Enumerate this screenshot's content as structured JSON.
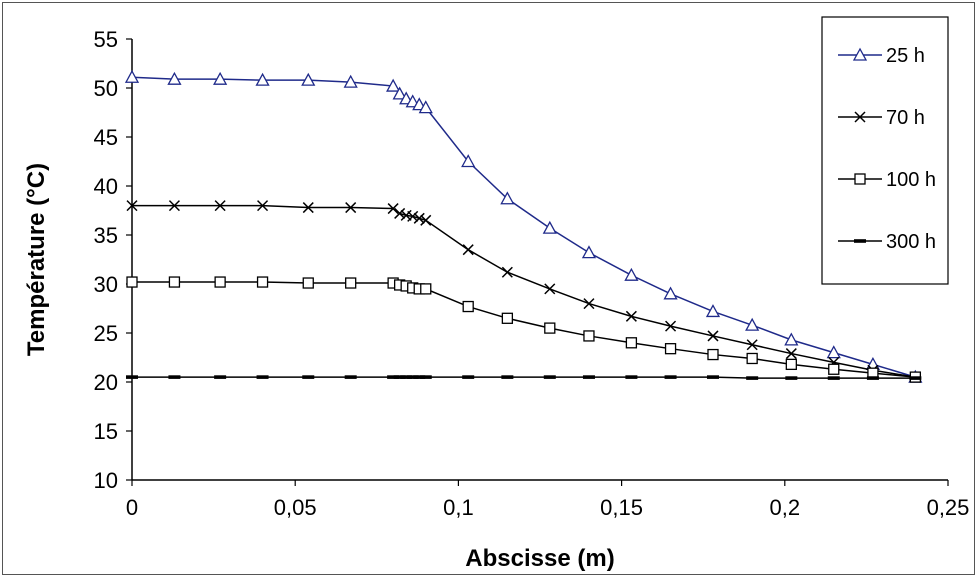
{
  "chart_data": {
    "type": "line",
    "xlabel": "Abscisse (m)",
    "ylabel": "Température (°C)",
    "xlim": [
      0,
      0.25
    ],
    "ylim": [
      10,
      55
    ],
    "grid": false,
    "legend_position": "top-right",
    "x_tick_labels": [
      "0",
      "0,05",
      "0,1",
      "0,15",
      "0,2",
      "0,25"
    ],
    "y_tick_labels": [
      "10",
      "15",
      "20",
      "25",
      "30",
      "35",
      "40",
      "45",
      "50",
      "55"
    ],
    "x": [
      0,
      0.013,
      0.027,
      0.04,
      0.054,
      0.067,
      0.08,
      0.082,
      0.084,
      0.086,
      0.088,
      0.09,
      0.103,
      0.115,
      0.128,
      0.14,
      0.153,
      0.165,
      0.178,
      0.19,
      0.202,
      0.215,
      0.227,
      0.24
    ],
    "series": [
      {
        "name": "25 h",
        "marker": "triangle",
        "color": "#1f2a8a",
        "values": [
          51.1,
          50.9,
          50.9,
          50.8,
          50.8,
          50.6,
          50.2,
          49.4,
          48.9,
          48.6,
          48.3,
          48.0,
          42.5,
          38.7,
          35.7,
          33.2,
          30.9,
          29.0,
          27.2,
          25.8,
          24.3,
          23.0,
          21.8,
          20.5
        ]
      },
      {
        "name": "70 h",
        "marker": "x",
        "color": "#000000",
        "values": [
          38.0,
          38.0,
          38.0,
          38.0,
          37.8,
          37.8,
          37.7,
          37.2,
          37.0,
          36.9,
          36.7,
          36.5,
          33.5,
          31.2,
          29.5,
          28.0,
          26.7,
          25.7,
          24.7,
          23.8,
          22.9,
          22.0,
          21.2,
          20.5
        ]
      },
      {
        "name": "100 h",
        "marker": "square",
        "color": "#000000",
        "values": [
          30.2,
          30.2,
          30.2,
          30.2,
          30.1,
          30.1,
          30.1,
          29.9,
          29.8,
          29.6,
          29.5,
          29.5,
          27.7,
          26.5,
          25.5,
          24.7,
          24.0,
          23.4,
          22.8,
          22.4,
          21.8,
          21.3,
          20.9,
          20.5
        ]
      },
      {
        "name": "300 h",
        "marker": "dash",
        "color": "#000000",
        "values": [
          20.5,
          20.5,
          20.5,
          20.5,
          20.5,
          20.5,
          20.5,
          20.5,
          20.5,
          20.5,
          20.5,
          20.5,
          20.5,
          20.5,
          20.5,
          20.5,
          20.5,
          20.5,
          20.5,
          20.4,
          20.4,
          20.4,
          20.4,
          20.4
        ]
      }
    ]
  }
}
